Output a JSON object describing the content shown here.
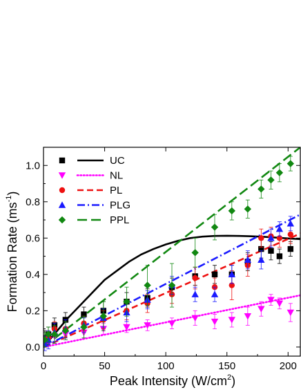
{
  "chart_data": {
    "type": "scatter",
    "xlabel": {
      "main": "Peak Intensity (W/cm",
      "sup": "2",
      "tail": ")"
    },
    "ylabel": {
      "main": "Formation Rate (ms",
      "sup": "-1",
      "tail": ")"
    },
    "xlim": [
      0,
      210
    ],
    "ylim": [
      -0.05,
      1.1
    ],
    "xticks": [
      0,
      50,
      100,
      150,
      200
    ],
    "yticks": [
      0.0,
      0.2,
      0.4,
      0.6,
      0.8,
      1.0
    ],
    "xtick_labels": [
      "0",
      "50",
      "100",
      "150",
      "200"
    ],
    "ytick_labels": [
      "0.0",
      "0.2",
      "0.4",
      "0.6",
      "0.8",
      "1.0"
    ],
    "legend_position": "top-left",
    "series": [
      {
        "name": "UC",
        "color": "#000000",
        "marker": "square",
        "x": [
          1,
          4,
          9,
          18,
          33,
          49,
          68,
          85,
          105,
          124,
          140,
          154,
          167,
          178,
          186,
          193,
          202
        ],
        "y": [
          0.05,
          0.07,
          0.12,
          0.15,
          0.18,
          0.2,
          0.25,
          0.27,
          0.33,
          0.39,
          0.4,
          0.4,
          0.47,
          0.54,
          0.53,
          0.5,
          0.54
        ],
        "err": [
          0.04,
          0.04,
          0.04,
          0.04,
          0.04,
          0.05,
          0.05,
          0.05,
          0.05,
          0.05,
          0.05,
          0.05,
          0.05,
          0.05,
          0.05,
          0.04,
          0.04
        ],
        "fit": {
          "style": "solid",
          "x": [
            0,
            10,
            20,
            30,
            40,
            50,
            60,
            70,
            80,
            90,
            100,
            110,
            120,
            130,
            140,
            150,
            160,
            170,
            180,
            190,
            200,
            210
          ],
          "y": [
            0.0,
            0.08,
            0.16,
            0.23,
            0.3,
            0.37,
            0.42,
            0.47,
            0.51,
            0.54,
            0.565,
            0.585,
            0.6,
            0.608,
            0.612,
            0.613,
            0.612,
            0.61,
            0.607,
            0.603,
            0.598,
            0.594
          ]
        }
      },
      {
        "name": "NL",
        "color": "#ff00ff",
        "marker": "triangle-down",
        "x": [
          1,
          4,
          9,
          18,
          33,
          49,
          68,
          85,
          105,
          124,
          140,
          154,
          167,
          178,
          186,
          193,
          202
        ],
        "y": [
          0.03,
          0.04,
          0.06,
          0.07,
          0.08,
          0.1,
          0.11,
          0.12,
          0.13,
          0.16,
          0.14,
          0.15,
          0.17,
          0.21,
          0.26,
          0.24,
          0.19
        ],
        "err": [
          0.02,
          0.02,
          0.03,
          0.03,
          0.03,
          0.03,
          0.03,
          0.03,
          0.03,
          0.04,
          0.04,
          0.04,
          0.05,
          0.04,
          0.03,
          0.03,
          0.05
        ],
        "fit": {
          "style": "dotted",
          "x": [
            0,
            210
          ],
          "y": [
            0.0,
            0.285
          ]
        }
      },
      {
        "name": "PL",
        "color": "#ee1111",
        "marker": "circle",
        "x": [
          1,
          4,
          9,
          18,
          33,
          49,
          68,
          85,
          105,
          124,
          140,
          154,
          167,
          178,
          186,
          193,
          202
        ],
        "y": [
          0.03,
          0.05,
          0.1,
          0.1,
          0.13,
          0.15,
          0.2,
          0.24,
          0.29,
          0.38,
          0.33,
          0.34,
          0.45,
          0.6,
          0.61,
          0.6,
          0.62
        ],
        "err": [
          0.03,
          0.04,
          0.04,
          0.04,
          0.04,
          0.05,
          0.05,
          0.05,
          0.05,
          0.06,
          0.05,
          0.08,
          0.06,
          0.05,
          0.05,
          0.05,
          0.05
        ],
        "fit": {
          "style": "dashed",
          "x": [
            0,
            210
          ],
          "y": [
            0.0,
            0.625
          ]
        }
      },
      {
        "name": "PLG",
        "color": "#1a1aff",
        "marker": "triangle-up",
        "x": [
          1,
          4,
          9,
          18,
          33,
          49,
          68,
          85,
          105,
          124,
          140,
          154,
          167,
          178,
          186,
          193,
          202
        ],
        "y": [
          0.02,
          0.04,
          0.08,
          0.1,
          0.12,
          0.16,
          0.19,
          0.26,
          0.34,
          0.29,
          0.29,
          0.4,
          0.48,
          0.48,
          0.6,
          0.65,
          0.68
        ],
        "err": [
          0.04,
          0.05,
          0.05,
          0.05,
          0.04,
          0.05,
          0.05,
          0.05,
          0.05,
          0.04,
          0.04,
          0.05,
          0.05,
          0.05,
          0.05,
          0.04,
          0.04
        ],
        "fit": {
          "style": "dashdot",
          "x": [
            0,
            210
          ],
          "y": [
            0.0,
            0.73
          ]
        }
      },
      {
        "name": "PPL",
        "color": "#118811",
        "marker": "diamond",
        "x": [
          1,
          4,
          9,
          18,
          33,
          49,
          68,
          85,
          105,
          124,
          140,
          154,
          167,
          178,
          186,
          193,
          202
        ],
        "y": [
          0.04,
          0.07,
          0.07,
          0.09,
          0.11,
          0.17,
          0.25,
          0.34,
          0.34,
          0.52,
          0.66,
          0.75,
          0.76,
          0.87,
          0.92,
          0.96,
          1.01
        ],
        "err": [
          0.04,
          0.04,
          0.05,
          0.05,
          0.06,
          0.08,
          0.08,
          0.11,
          0.12,
          0.08,
          0.07,
          0.05,
          0.05,
          0.05,
          0.05,
          0.05,
          0.04
        ],
        "fit": {
          "style": "longdash",
          "x": [
            0,
            210
          ],
          "y": [
            0.0,
            1.1
          ]
        }
      }
    ]
  }
}
